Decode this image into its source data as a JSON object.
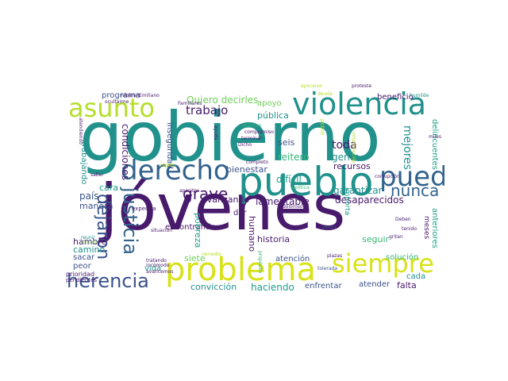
{
  "wordcloud": {
    "words": [
      "gobierno",
      "jóvenes",
      "pueblo",
      "problema",
      "violencia",
      "derecho",
      "asunto",
      "puedo",
      "siempre",
      "justicia",
      "herencia",
      "dejaron",
      "nunca",
      "grave",
      "trabajo",
      "lamentable",
      "desaparecidos",
      "garantizar",
      "mejores",
      "toda",
      "gente",
      "seis",
      "recursos",
      "bienestar",
      "difícil",
      "reitero",
      "pública",
      "apoyo",
      "beneficio",
      "Quiero decirles",
      "programa",
      "condiciones",
      "inseguridad",
      "cara",
      "país",
      "manera",
      "hambre",
      "camino",
      "sacar",
      "peor",
      "prioridad",
      "pendientes",
      "dar",
      "encontrando",
      "avanzando",
      "pobreza",
      "siete",
      "humano",
      "historia",
      "vida",
      "convicción",
      "haciendo",
      "enfrentar",
      "atender",
      "falta",
      "solución",
      "cada",
      "seguir",
      "atención",
      "anteriores",
      "delincuentes",
      "meses",
      "trabajando",
      "Emiliano",
      "robaron",
      "ocultarme",
      "humilde",
      "protesté",
      "aplicaron",
      "Familiares",
      "miles",
      "corrupción",
      "Deben",
      "reunir",
      "Zapata",
      "tratando",
      "incómodo",
      "avancemos",
      "expedita",
      "situación",
      "tolerada",
      "pesos",
      "plazas",
      "remedio",
      "propósito",
      "completo",
      "compromiso",
      "víctimas",
      "terminar",
      "política",
      "doloroso",
      "Dicho",
      "saber",
      "apositor",
      "pobre",
      "importa",
      "rápido",
      "atendiendo",
      "ayuda",
      "empobrecido",
      "gritan",
      "tenido",
      "deuda",
      "enorme",
      "cumplir"
    ],
    "colors": {
      "dark_purple": "#481a6c",
      "indigo": "#3b528b",
      "blue": "#33638d",
      "teal": "#21918c",
      "sea": "#1f9e89",
      "green": "#35b779",
      "lime": "#6ece58",
      "yellow_green": "#b5de2b",
      "yellow": "#d8e219"
    }
  }
}
